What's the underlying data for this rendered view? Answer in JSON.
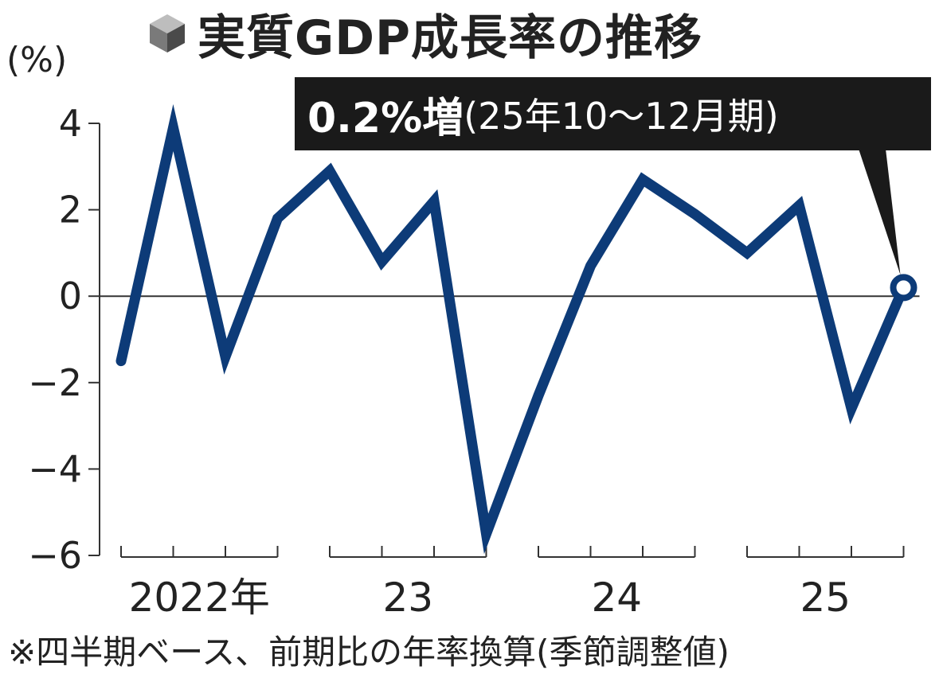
{
  "title": "実質GDP成長率の推移",
  "icon": "cube-icon",
  "unit_label": "(%)",
  "callout": {
    "strong": "0.2%増",
    "normal": "(25年10〜12月期)"
  },
  "footnote": "※四半期ベース、前期比の年率換算(季節調整値)",
  "colors": {
    "line": "#0d3b78",
    "axis": "#333333",
    "text": "#222222",
    "callout_bg": "#1a1a1a"
  },
  "chart_data": {
    "type": "line",
    "title": "実質GDP成長率の推移",
    "ylabel": "(%)",
    "xlabel": "",
    "ylim": [
      -6,
      4
    ],
    "yticks": [
      4,
      2,
      0,
      -2,
      -4,
      -6
    ],
    "ytick_labels": [
      "4",
      "2",
      "0",
      "−2",
      "−4",
      "−6"
    ],
    "year_groups": [
      {
        "label": "2022年",
        "quarters": [
          "2022Q1",
          "2022Q2",
          "2022Q3",
          "2022Q4"
        ]
      },
      {
        "label": "23",
        "quarters": [
          "2023Q1",
          "2023Q2",
          "2023Q3",
          "2023Q4"
        ]
      },
      {
        "label": "24",
        "quarters": [
          "2024Q1",
          "2024Q2",
          "2024Q3",
          "2024Q4"
        ]
      },
      {
        "label": "25",
        "quarters": [
          "2025Q1",
          "2025Q2",
          "2025Q3",
          "2025Q4"
        ]
      }
    ],
    "x": [
      "2022Q1",
      "2022Q2",
      "2022Q3",
      "2022Q4",
      "2023Q1",
      "2023Q2",
      "2023Q3",
      "2023Q4",
      "2024Q1",
      "2024Q2",
      "2024Q3",
      "2024Q4",
      "2025Q1",
      "2025Q2",
      "2025Q3",
      "2025Q4"
    ],
    "series": [
      {
        "values": [
          -1.5,
          3.9,
          -1.4,
          1.8,
          2.9,
          0.8,
          2.2,
          -5.5,
          -2.3,
          0.7,
          2.7,
          1.9,
          1.0,
          2.1,
          -2.6,
          0.2
        ]
      }
    ],
    "highlight": {
      "x": "2025Q4",
      "value": 0.2
    },
    "grid": false,
    "zero_line": true
  }
}
